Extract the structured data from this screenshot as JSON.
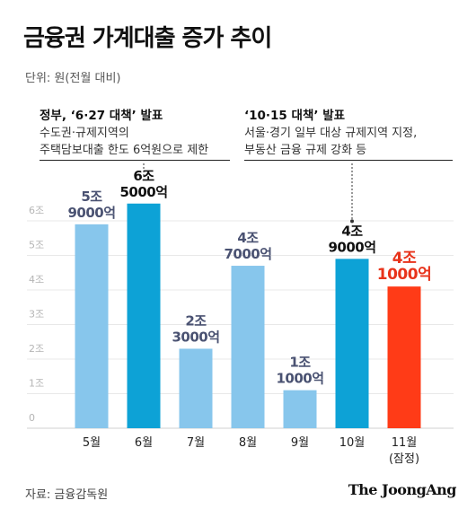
{
  "header": {
    "title": "금융권 가계대출 증가 추이",
    "unit": "단위: 원(전월 대비)"
  },
  "notes": {
    "left": {
      "head": "정부, ‘6·27 대책’ 발표",
      "lines": [
        "수도권·규제지역의",
        "주택담보대출 한도 6억원으로 제한"
      ]
    },
    "right": {
      "head": "‘10·15 대책’ 발표",
      "lines": [
        "서울·경기 일부 대상 규제지역 지정,",
        "부동산 금융 규제 강화 등"
      ]
    }
  },
  "footer": {
    "source": "자료: 금융감독원",
    "brand": "The JoongAng"
  },
  "colors": {
    "bar_light": "#87c6ec",
    "bar_dark": "#0da2d6",
    "bar_highlight": "#ff3b17",
    "label_muted": "#4a5272",
    "label_dark": "#111111",
    "label_highlight": "#e8331b",
    "grid": "#e8e8e8",
    "axis_text": "#b5b5b5"
  },
  "chart_data": {
    "type": "bar",
    "categories": [
      "5월",
      "6월",
      "7월",
      "8월",
      "9월",
      "10월",
      "11월"
    ],
    "category_sublabels": [
      "",
      "",
      "",
      "",
      "",
      "",
      "(잠정)"
    ],
    "values": [
      5.9,
      6.5,
      2.3,
      4.7,
      1.1,
      4.9,
      4.1
    ],
    "value_labels": [
      [
        "5조",
        "9000억"
      ],
      [
        "6조",
        "5000억"
      ],
      [
        "2조",
        "3000억"
      ],
      [
        "4조",
        "7000억"
      ],
      [
        "1조",
        "1000억"
      ],
      [
        "4조",
        "9000억"
      ],
      [
        "4조",
        "1000억"
      ]
    ],
    "bar_styles": [
      "light",
      "dark",
      "light",
      "light",
      "light",
      "dark",
      "highlight"
    ],
    "y_ticks": [
      "0",
      "1조",
      "2조",
      "3조",
      "4조",
      "5조",
      "6조"
    ],
    "ylim": [
      0,
      6.9
    ],
    "grid": true,
    "title": "금융권 가계대출 증가 추이",
    "ylabel": "단위: 원(전월 대비)"
  }
}
